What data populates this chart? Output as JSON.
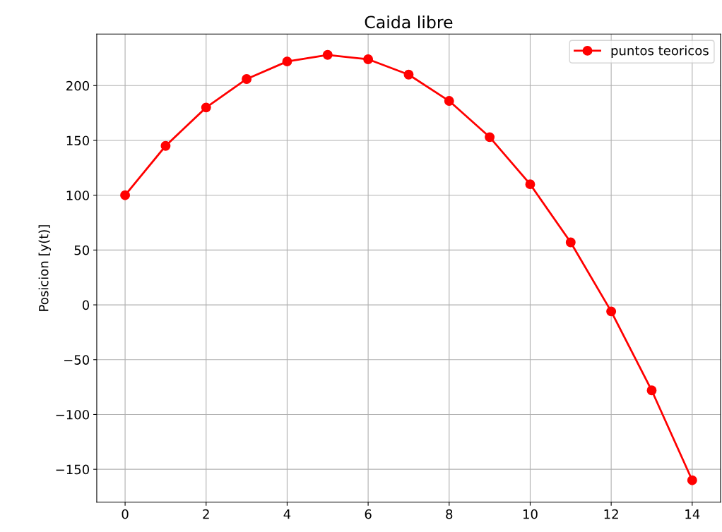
{
  "chart_data": {
    "type": "line",
    "title": "Caida libre",
    "ylabel": "Posicion [y(t)]",
    "x": [
      0,
      1,
      2,
      3,
      4,
      5,
      6,
      7,
      8,
      9,
      10,
      11,
      12,
      13,
      14
    ],
    "series": [
      {
        "name": "puntos teoricos",
        "color": "#ff0000",
        "values": [
          100,
          145,
          180,
          206,
          222,
          228,
          224,
          210,
          186,
          153,
          110,
          57,
          -6,
          -78,
          -160
        ]
      }
    ],
    "xlim": [
      -0.7,
      14.7
    ],
    "xticks": [
      0,
      2,
      4,
      6,
      8,
      10,
      12,
      14
    ],
    "ylim": [
      -180,
      247
    ],
    "yticks": [
      {
        "value": -150,
        "label": "−150"
      },
      {
        "value": -100,
        "label": "−100"
      },
      {
        "value": -50,
        "label": "−50"
      },
      0,
      50,
      100,
      150,
      200
    ],
    "grid": true,
    "legend": "top right",
    "marker": "circle",
    "line_style": "solid"
  }
}
